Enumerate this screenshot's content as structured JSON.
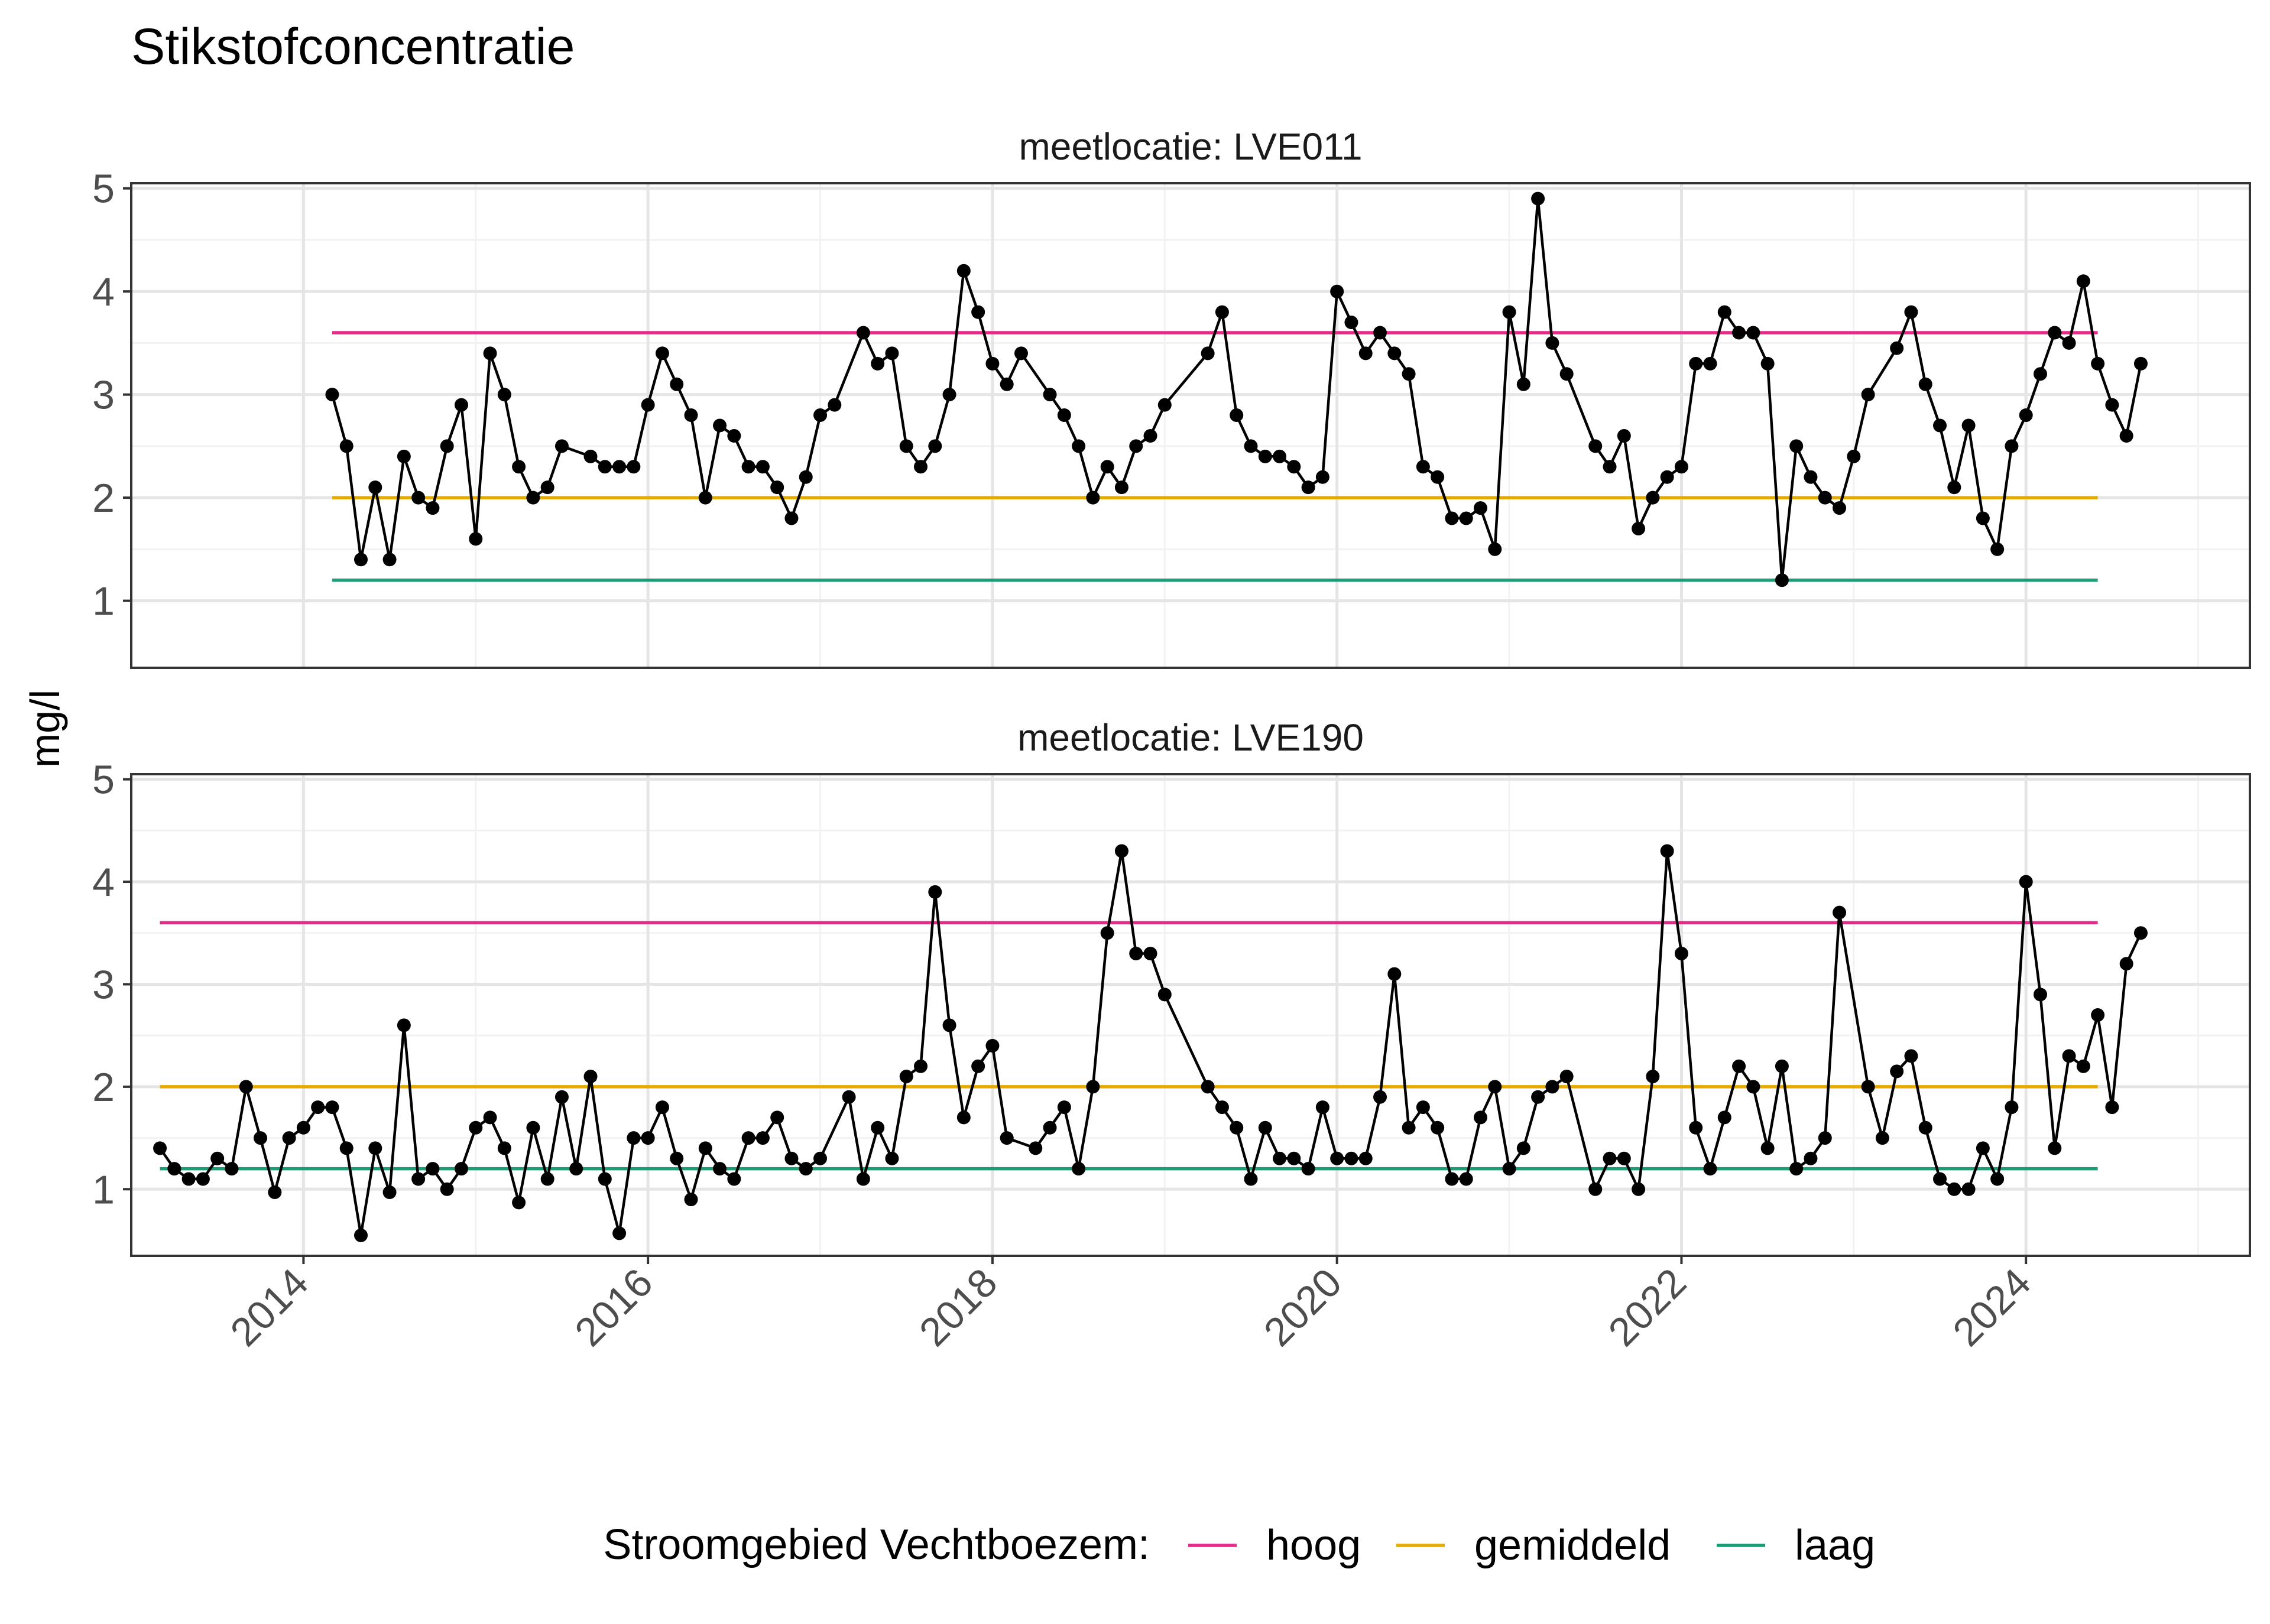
{
  "chart_data": {
    "type": "line",
    "title": "Stikstofconcentratie",
    "ylabel": "mg/l",
    "xlabel": "",
    "ylim": [
      0.35,
      5.05
    ],
    "xlim_year": [
      2013.0,
      2025.3
    ],
    "y_ticks": [
      1,
      2,
      3,
      4,
      5
    ],
    "x_ticks": [
      2014,
      2016,
      2018,
      2020,
      2022,
      2024
    ],
    "x_tick_labels": [
      "2014",
      "2016",
      "2018",
      "2020",
      "2022",
      "2024"
    ],
    "grid": true,
    "legend_position": "bottom",
    "legend": {
      "title": "Stroomgebied Vechtboezem:",
      "items": [
        {
          "label": "hoog",
          "color": "#E7298A"
        },
        {
          "label": "gemiddeld",
          "color": "#E6AB02"
        },
        {
          "label": "laag",
          "color": "#1B9E77"
        }
      ]
    },
    "panels": [
      {
        "label": "meetlocatie: LVE011",
        "reference_lines": {
          "x_start": "2014-03",
          "x_end": "2024-06",
          "hoog": 3.6,
          "gemiddeld": 2.0,
          "laag": 1.2
        },
        "series_values": [
          [
            "2014-03",
            3.0
          ],
          [
            "2014-04",
            2.5
          ],
          [
            "2014-05",
            1.4
          ],
          [
            "2014-06",
            2.1
          ],
          [
            "2014-07",
            1.4
          ],
          [
            "2014-08",
            2.4
          ],
          [
            "2014-09",
            2.0
          ],
          [
            "2014-10",
            1.9
          ],
          [
            "2014-11",
            2.5
          ],
          [
            "2014-12",
            2.9
          ],
          [
            "2015-01",
            1.6
          ],
          [
            "2015-02",
            3.4
          ],
          [
            "2015-03",
            3.0
          ],
          [
            "2015-04",
            2.3
          ],
          [
            "2015-05",
            2.0
          ],
          [
            "2015-06",
            2.1
          ],
          [
            "2015-07",
            2.5
          ],
          [
            "2015-09",
            2.4
          ],
          [
            "2015-10",
            2.3
          ],
          [
            "2015-11",
            2.3
          ],
          [
            "2015-12",
            2.3
          ],
          [
            "2016-01",
            2.9
          ],
          [
            "2016-02",
            3.4
          ],
          [
            "2016-03",
            3.1
          ],
          [
            "2016-04",
            2.8
          ],
          [
            "2016-05",
            2.0
          ],
          [
            "2016-06",
            2.7
          ],
          [
            "2016-07",
            2.6
          ],
          [
            "2016-08",
            2.3
          ],
          [
            "2016-09",
            2.3
          ],
          [
            "2016-10",
            2.1
          ],
          [
            "2016-11",
            1.8
          ],
          [
            "2016-12",
            2.2
          ],
          [
            "2017-01",
            2.8
          ],
          [
            "2017-02",
            2.9
          ],
          [
            "2017-04",
            3.6
          ],
          [
            "2017-05",
            3.3
          ],
          [
            "2017-06",
            3.4
          ],
          [
            "2017-07",
            2.5
          ],
          [
            "2017-08",
            2.3
          ],
          [
            "2017-09",
            2.5
          ],
          [
            "2017-10",
            3.0
          ],
          [
            "2017-11",
            4.2
          ],
          [
            "2017-12",
            3.8
          ],
          [
            "2018-01",
            3.3
          ],
          [
            "2018-02",
            3.1
          ],
          [
            "2018-03",
            3.4
          ],
          [
            "2018-05",
            3.0
          ],
          [
            "2018-06",
            2.8
          ],
          [
            "2018-07",
            2.5
          ],
          [
            "2018-08",
            2.0
          ],
          [
            "2018-09",
            2.3
          ],
          [
            "2018-10",
            2.1
          ],
          [
            "2018-11",
            2.5
          ],
          [
            "2018-12",
            2.6
          ],
          [
            "2019-01",
            2.9
          ],
          [
            "2019-04",
            3.4
          ],
          [
            "2019-05",
            3.8
          ],
          [
            "2019-06",
            2.8
          ],
          [
            "2019-07",
            2.5
          ],
          [
            "2019-08",
            2.4
          ],
          [
            "2019-09",
            2.4
          ],
          [
            "2019-10",
            2.3
          ],
          [
            "2019-11",
            2.1
          ],
          [
            "2019-12",
            2.2
          ],
          [
            "2020-01",
            4.0
          ],
          [
            "2020-02",
            3.7
          ],
          [
            "2020-03",
            3.4
          ],
          [
            "2020-04",
            3.6
          ],
          [
            "2020-05",
            3.4
          ],
          [
            "2020-06",
            3.2
          ],
          [
            "2020-07",
            2.3
          ],
          [
            "2020-08",
            2.2
          ],
          [
            "2020-09",
            1.8
          ],
          [
            "2020-10",
            1.8
          ],
          [
            "2020-11",
            1.9
          ],
          [
            "2020-12",
            1.5
          ],
          [
            "2021-01",
            3.8
          ],
          [
            "2021-02",
            3.1
          ],
          [
            "2021-03",
            4.9
          ],
          [
            "2021-04",
            3.5
          ],
          [
            "2021-05",
            3.2
          ],
          [
            "2021-07",
            2.5
          ],
          [
            "2021-08",
            2.3
          ],
          [
            "2021-09",
            2.6
          ],
          [
            "2021-10",
            1.7
          ],
          [
            "2021-11",
            2.0
          ],
          [
            "2021-12",
            2.2
          ],
          [
            "2022-01",
            2.3
          ],
          [
            "2022-02",
            3.3
          ],
          [
            "2022-03",
            3.3
          ],
          [
            "2022-04",
            3.8
          ],
          [
            "2022-05",
            3.6
          ],
          [
            "2022-06",
            3.6
          ],
          [
            "2022-07",
            3.3
          ],
          [
            "2022-08",
            1.2
          ],
          [
            "2022-09",
            2.5
          ],
          [
            "2022-10",
            2.2
          ],
          [
            "2022-11",
            2.0
          ],
          [
            "2022-12",
            1.9
          ],
          [
            "2023-01",
            2.4
          ],
          [
            "2023-02",
            3.0
          ],
          [
            "2023-04",
            3.45
          ],
          [
            "2023-05",
            3.8
          ],
          [
            "2023-06",
            3.1
          ],
          [
            "2023-07",
            2.7
          ],
          [
            "2023-08",
            2.1
          ],
          [
            "2023-09",
            2.7
          ],
          [
            "2023-10",
            1.8
          ],
          [
            "2023-11",
            1.5
          ],
          [
            "2023-12",
            2.5
          ],
          [
            "2024-01",
            2.8
          ],
          [
            "2024-02",
            3.2
          ],
          [
            "2024-03",
            3.6
          ],
          [
            "2024-04",
            3.5
          ],
          [
            "2024-05",
            4.1
          ],
          [
            "2024-06",
            3.3
          ],
          [
            "2024-07",
            2.9
          ],
          [
            "2024-08",
            2.6
          ],
          [
            "2024-09",
            3.3
          ]
        ]
      },
      {
        "label": "meetlocatie: LVE190",
        "reference_lines": {
          "x_start": "2013-03",
          "x_end": "2024-06",
          "hoog": 3.6,
          "gemiddeld": 2.0,
          "laag": 1.2
        },
        "series_values": [
          [
            "2013-03",
            1.4
          ],
          [
            "2013-04",
            1.2
          ],
          [
            "2013-05",
            1.1
          ],
          [
            "2013-06",
            1.1
          ],
          [
            "2013-07",
            1.3
          ],
          [
            "2013-08",
            1.2
          ],
          [
            "2013-09",
            2.0
          ],
          [
            "2013-10",
            1.5
          ],
          [
            "2013-11",
            0.97
          ],
          [
            "2013-12",
            1.5
          ],
          [
            "2014-01",
            1.6
          ],
          [
            "2014-02",
            1.8
          ],
          [
            "2014-03",
            1.8
          ],
          [
            "2014-04",
            1.4
          ],
          [
            "2014-05",
            0.55
          ],
          [
            "2014-06",
            1.4
          ],
          [
            "2014-07",
            0.97
          ],
          [
            "2014-08",
            2.6
          ],
          [
            "2014-09",
            1.1
          ],
          [
            "2014-10",
            1.2
          ],
          [
            "2014-11",
            1.0
          ],
          [
            "2014-12",
            1.2
          ],
          [
            "2015-01",
            1.6
          ],
          [
            "2015-02",
            1.7
          ],
          [
            "2015-03",
            1.4
          ],
          [
            "2015-04",
            0.87
          ],
          [
            "2015-05",
            1.6
          ],
          [
            "2015-06",
            1.1
          ],
          [
            "2015-07",
            1.9
          ],
          [
            "2015-08",
            1.2
          ],
          [
            "2015-09",
            2.1
          ],
          [
            "2015-10",
            1.1
          ],
          [
            "2015-11",
            0.57
          ],
          [
            "2015-12",
            1.5
          ],
          [
            "2016-01",
            1.5
          ],
          [
            "2016-02",
            1.8
          ],
          [
            "2016-03",
            1.3
          ],
          [
            "2016-04",
            0.9
          ],
          [
            "2016-05",
            1.4
          ],
          [
            "2016-06",
            1.2
          ],
          [
            "2016-07",
            1.1
          ],
          [
            "2016-08",
            1.5
          ],
          [
            "2016-09",
            1.5
          ],
          [
            "2016-10",
            1.7
          ],
          [
            "2016-11",
            1.3
          ],
          [
            "2016-12",
            1.2
          ],
          [
            "2017-01",
            1.3
          ],
          [
            "2017-03",
            1.9
          ],
          [
            "2017-04",
            1.1
          ],
          [
            "2017-05",
            1.6
          ],
          [
            "2017-06",
            1.3
          ],
          [
            "2017-07",
            2.1
          ],
          [
            "2017-08",
            2.2
          ],
          [
            "2017-09",
            3.9
          ],
          [
            "2017-10",
            2.6
          ],
          [
            "2017-11",
            1.7
          ],
          [
            "2017-12",
            2.2
          ],
          [
            "2018-01",
            2.4
          ],
          [
            "2018-02",
            1.5
          ],
          [
            "2018-04",
            1.4
          ],
          [
            "2018-05",
            1.6
          ],
          [
            "2018-06",
            1.8
          ],
          [
            "2018-07",
            1.2
          ],
          [
            "2018-08",
            2.0
          ],
          [
            "2018-09",
            3.5
          ],
          [
            "2018-10",
            4.3
          ],
          [
            "2018-11",
            3.3
          ],
          [
            "2018-12",
            3.3
          ],
          [
            "2019-01",
            2.9
          ],
          [
            "2019-04",
            2.0
          ],
          [
            "2019-05",
            1.8
          ],
          [
            "2019-06",
            1.6
          ],
          [
            "2019-07",
            1.1
          ],
          [
            "2019-08",
            1.6
          ],
          [
            "2019-09",
            1.3
          ],
          [
            "2019-10",
            1.3
          ],
          [
            "2019-11",
            1.2
          ],
          [
            "2019-12",
            1.8
          ],
          [
            "2020-01",
            1.3
          ],
          [
            "2020-02",
            1.3
          ],
          [
            "2020-03",
            1.3
          ],
          [
            "2020-04",
            1.9
          ],
          [
            "2020-05",
            3.1
          ],
          [
            "2020-06",
            1.6
          ],
          [
            "2020-07",
            1.8
          ],
          [
            "2020-08",
            1.6
          ],
          [
            "2020-09",
            1.1
          ],
          [
            "2020-10",
            1.1
          ],
          [
            "2020-11",
            1.7
          ],
          [
            "2020-12",
            2.0
          ],
          [
            "2021-01",
            1.2
          ],
          [
            "2021-02",
            1.4
          ],
          [
            "2021-03",
            1.9
          ],
          [
            "2021-04",
            2.0
          ],
          [
            "2021-05",
            2.1
          ],
          [
            "2021-07",
            1.0
          ],
          [
            "2021-08",
            1.3
          ],
          [
            "2021-09",
            1.3
          ],
          [
            "2021-10",
            1.0
          ],
          [
            "2021-11",
            2.1
          ],
          [
            "2021-12",
            4.3
          ],
          [
            "2022-01",
            3.3
          ],
          [
            "2022-02",
            1.6
          ],
          [
            "2022-03",
            1.2
          ],
          [
            "2022-04",
            1.7
          ],
          [
            "2022-05",
            2.2
          ],
          [
            "2022-06",
            2.0
          ],
          [
            "2022-07",
            1.4
          ],
          [
            "2022-08",
            2.2
          ],
          [
            "2022-09",
            1.2
          ],
          [
            "2022-10",
            1.3
          ],
          [
            "2022-11",
            1.5
          ],
          [
            "2022-12",
            3.7
          ],
          [
            "2023-02",
            2.0
          ],
          [
            "2023-03",
            1.5
          ],
          [
            "2023-04",
            2.15
          ],
          [
            "2023-05",
            2.3
          ],
          [
            "2023-06",
            1.6
          ],
          [
            "2023-07",
            1.1
          ],
          [
            "2023-08",
            1.0
          ],
          [
            "2023-09",
            1.0
          ],
          [
            "2023-10",
            1.4
          ],
          [
            "2023-11",
            1.1
          ],
          [
            "2023-12",
            1.8
          ],
          [
            "2024-01",
            4.0
          ],
          [
            "2024-02",
            2.9
          ],
          [
            "2024-03",
            1.4
          ],
          [
            "2024-04",
            2.3
          ],
          [
            "2024-05",
            2.2
          ],
          [
            "2024-06",
            2.7
          ],
          [
            "2024-07",
            1.8
          ],
          [
            "2024-08",
            3.2
          ],
          [
            "2024-09",
            3.5
          ]
        ]
      }
    ]
  }
}
